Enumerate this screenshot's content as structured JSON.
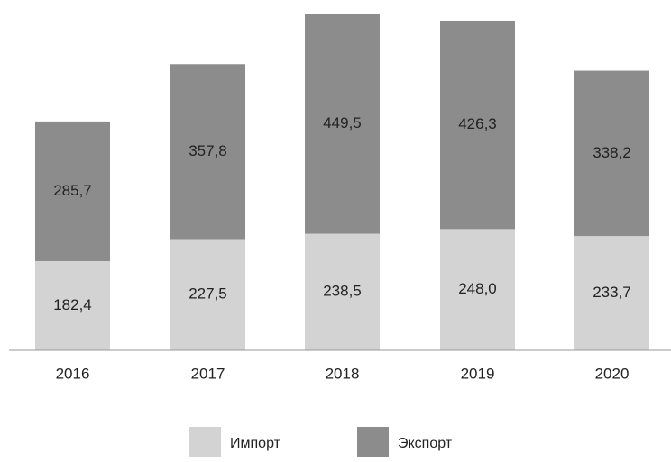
{
  "chart_data": {
    "type": "stacked-bar",
    "categories": [
      "2016",
      "2017",
      "2018",
      "2019",
      "2020"
    ],
    "series": [
      {
        "name": "Импорт",
        "color": "#d3d3d3",
        "values": [
          182.4,
          227.5,
          238.5,
          248.0,
          233.7
        ],
        "value_labels": [
          "182,4",
          "227,5",
          "238,5",
          "248,0",
          "233,7"
        ]
      },
      {
        "name": "Экспорт",
        "color": "#8c8c8c",
        "values": [
          285.7,
          357.8,
          449.5,
          426.3,
          338.2
        ],
        "value_labels": [
          "285,7",
          "357,8",
          "449,5",
          "426,3",
          "338,2"
        ]
      }
    ],
    "ylim": [
      0,
      700
    ]
  }
}
